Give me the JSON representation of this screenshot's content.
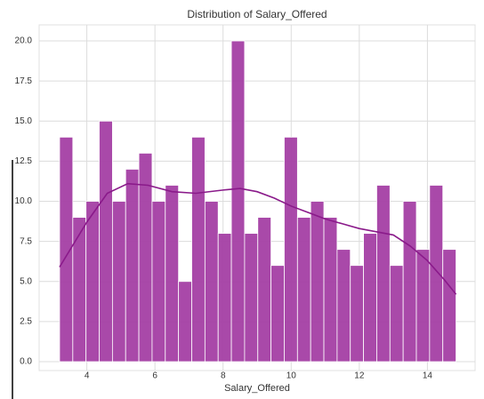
{
  "chart_data": {
    "type": "histogram",
    "title": "Distribution of Salary_Offered",
    "x_label": "Salary_Offered",
    "bins": [
      3.2,
      3.588,
      3.976,
      4.364,
      4.752,
      5.14,
      5.528,
      5.916,
      6.304,
      6.692,
      7.08,
      7.468,
      7.856,
      8.244,
      8.632,
      9.02,
      9.408,
      9.796,
      10.184,
      10.572,
      10.96,
      11.348,
      11.736,
      12.124,
      12.512,
      12.9,
      13.288,
      13.676,
      14.064,
      14.452,
      14.84
    ],
    "counts": [
      14,
      9,
      10,
      15,
      10,
      12,
      13,
      10,
      11,
      5,
      14,
      10,
      8,
      20,
      8,
      9,
      6,
      14,
      9,
      10,
      9,
      7,
      6,
      8,
      11,
      6,
      10,
      7,
      11,
      7
    ],
    "color": "#a43fa4",
    "kde": {
      "x": [
        3.2,
        4,
        4.6,
        5.2,
        5.8,
        6.5,
        7.2,
        8,
        8.5,
        9,
        9.5,
        10,
        10.5,
        11,
        11.5,
        12,
        12.5,
        13,
        13.5,
        14,
        14.5,
        14.84
      ],
      "values": [
        5.9,
        8.7,
        10.5,
        11.1,
        11.0,
        10.6,
        10.5,
        10.7,
        10.8,
        10.6,
        10.2,
        9.7,
        9.3,
        8.9,
        8.6,
        8.3,
        8.1,
        7.9,
        7.2,
        6.3,
        5.1,
        4.2
      ],
      "color": "#8a1a8a"
    },
    "xlim": [
      2.6,
      15.4
    ],
    "ylim": [
      0,
      21.0
    ],
    "xticks": [
      4,
      6,
      8,
      10,
      12,
      14
    ],
    "yticks": [
      {
        "value": 0,
        "label": "0.0"
      },
      {
        "value": 2.5,
        "label": "2.5"
      },
      {
        "value": 5,
        "label": "5.0"
      },
      {
        "value": 7.5,
        "label": "7.5"
      },
      {
        "value": 10,
        "label": "10.0"
      },
      {
        "value": 12.5,
        "label": "12.5"
      },
      {
        "value": 15,
        "label": "15.0"
      },
      {
        "value": 17.5,
        "label": "17.5"
      },
      {
        "value": 20,
        "label": "20.0"
      }
    ],
    "grid": true
  }
}
